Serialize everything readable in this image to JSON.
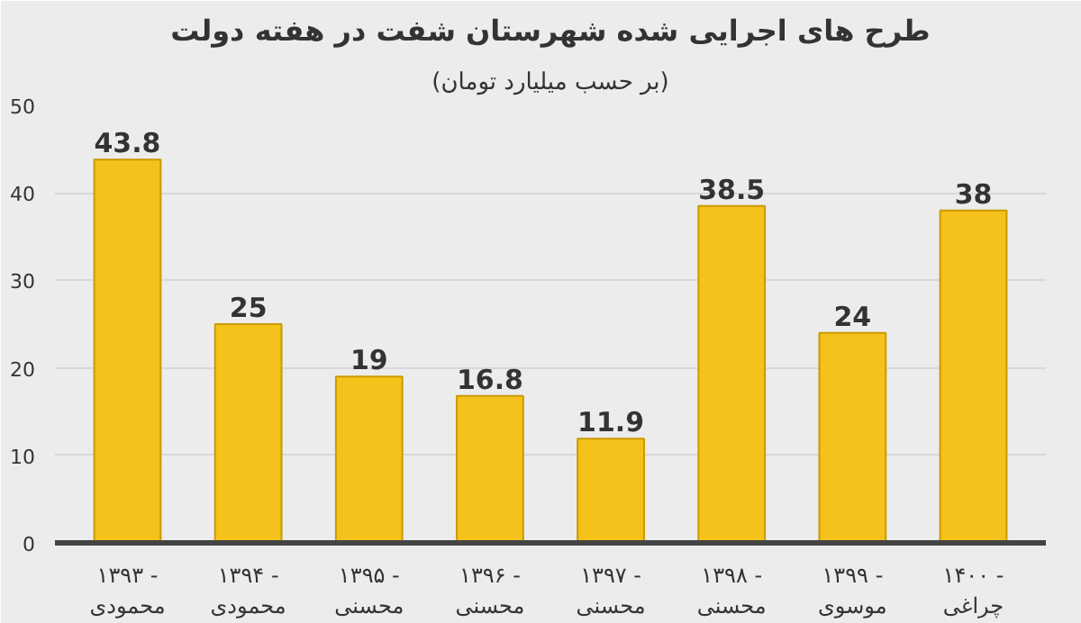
{
  "chart_data": {
    "type": "bar",
    "title": "طرح های اجرایی شده شهرستان شفت در هفته دولت",
    "subtitle": "(بر حسب میلیارد تومان)",
    "categories": [
      "۱۳۹۳ -\nمحمودی",
      "۱۳۹۴ -\nمحمودی",
      "۱۳۹۵ -\nمحسنی",
      "۱۳۹۶ -\nمحسنی",
      "۱۳۹۷ -\nمحسنی",
      "۱۳۹۸ -\nمحسنی",
      "۱۳۹۹ -\nموسوی",
      "۱۴۰۰ -\nچراغی"
    ],
    "values": [
      43.8,
      25,
      19,
      16.8,
      11.9,
      38.5,
      24,
      38
    ],
    "color": "#f5c21b",
    "ylim": [
      0,
      50
    ],
    "yticks": [
      0,
      10,
      20,
      30,
      40,
      50
    ],
    "grid": "y",
    "data_labels": true
  }
}
